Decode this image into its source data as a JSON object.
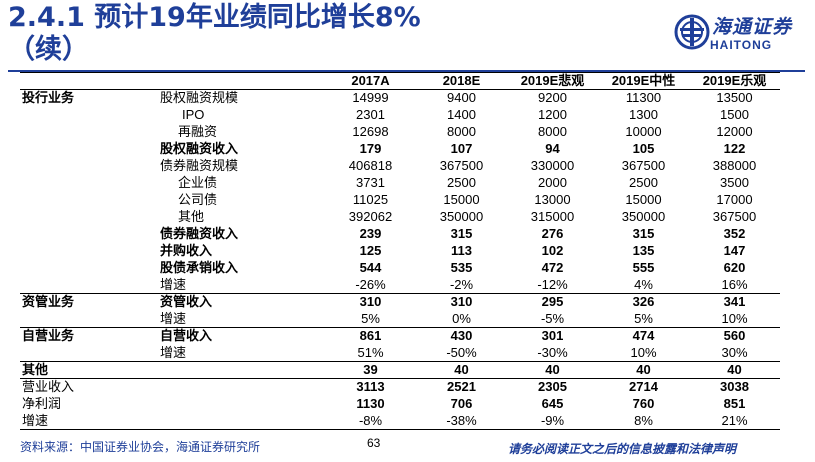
{
  "title": {
    "line1": "2.4.1 预计19年业绩同比增长8%",
    "line2": "（续）"
  },
  "logo": {
    "cn": "海通证券",
    "en": "HAITONG"
  },
  "table": {
    "headers": [
      "2017A",
      "2018E",
      "2019E悲观",
      "2019E中性",
      "2019E乐观"
    ],
    "rows": [
      {
        "section": "投行业务",
        "item": "股权融资规模",
        "values": [
          "14999",
          "9400",
          "9200",
          "11300",
          "13500"
        ]
      },
      {
        "section": "",
        "item": "IPO",
        "values": [
          "2301",
          "1400",
          "1200",
          "1300",
          "1500"
        ]
      },
      {
        "section": "",
        "item": "再融资",
        "values": [
          "12698",
          "8000",
          "8000",
          "10000",
          "12000"
        ]
      },
      {
        "section": "",
        "item": "股权融资收入",
        "values": [
          "179",
          "107",
          "94",
          "105",
          "122"
        ]
      },
      {
        "section": "",
        "item": "债券融资规模",
        "values": [
          "406818",
          "367500",
          "330000",
          "367500",
          "388000"
        ]
      },
      {
        "section": "",
        "item": "企业债",
        "values": [
          "3731",
          "2500",
          "2000",
          "2500",
          "3500"
        ]
      },
      {
        "section": "",
        "item": "公司债",
        "values": [
          "11025",
          "15000",
          "13000",
          "15000",
          "17000"
        ]
      },
      {
        "section": "",
        "item": "其他",
        "values": [
          "392062",
          "350000",
          "315000",
          "350000",
          "367500"
        ]
      },
      {
        "section": "",
        "item": "债券融资收入",
        "values": [
          "239",
          "315",
          "276",
          "315",
          "352"
        ]
      },
      {
        "section": "",
        "item": "并购收入",
        "values": [
          "125",
          "113",
          "102",
          "135",
          "147"
        ]
      },
      {
        "section": "",
        "item": "股债承销收入",
        "values": [
          "544",
          "535",
          "472",
          "555",
          "620"
        ]
      },
      {
        "section": "",
        "item": "增速",
        "values": [
          "-26%",
          "-2%",
          "-12%",
          "4%",
          "16%"
        ]
      },
      {
        "section": "资管业务",
        "item": "资管收入",
        "values": [
          "310",
          "310",
          "295",
          "326",
          "341"
        ]
      },
      {
        "section": "",
        "item": "增速",
        "values": [
          "5%",
          "0%",
          "-5%",
          "5%",
          "10%"
        ]
      },
      {
        "section": "自营业务",
        "item": "自营收入",
        "values": [
          "861",
          "430",
          "301",
          "474",
          "560"
        ]
      },
      {
        "section": "",
        "item": "增速",
        "values": [
          "51%",
          "-50%",
          "-30%",
          "10%",
          "30%"
        ]
      },
      {
        "section": "其他",
        "item": "",
        "values": [
          "39",
          "40",
          "40",
          "40",
          "40"
        ]
      },
      {
        "section": "营业收入",
        "item": "",
        "values": [
          "3113",
          "2521",
          "2305",
          "2714",
          "3038"
        ]
      },
      {
        "section": "净利润",
        "item": "",
        "values": [
          "1130",
          "706",
          "645",
          "760",
          "851"
        ]
      },
      {
        "section": "增速",
        "item": "",
        "values": [
          "-8%",
          "-38%",
          "-9%",
          "8%",
          "21%"
        ]
      }
    ]
  },
  "footer": {
    "source": "资料来源：中国证券业协会，海通证券研究所",
    "page": "63",
    "disclaimer": "请务必阅读正文之后的信息披露和法律声明"
  },
  "colors": {
    "brand": "#1f3f99"
  }
}
